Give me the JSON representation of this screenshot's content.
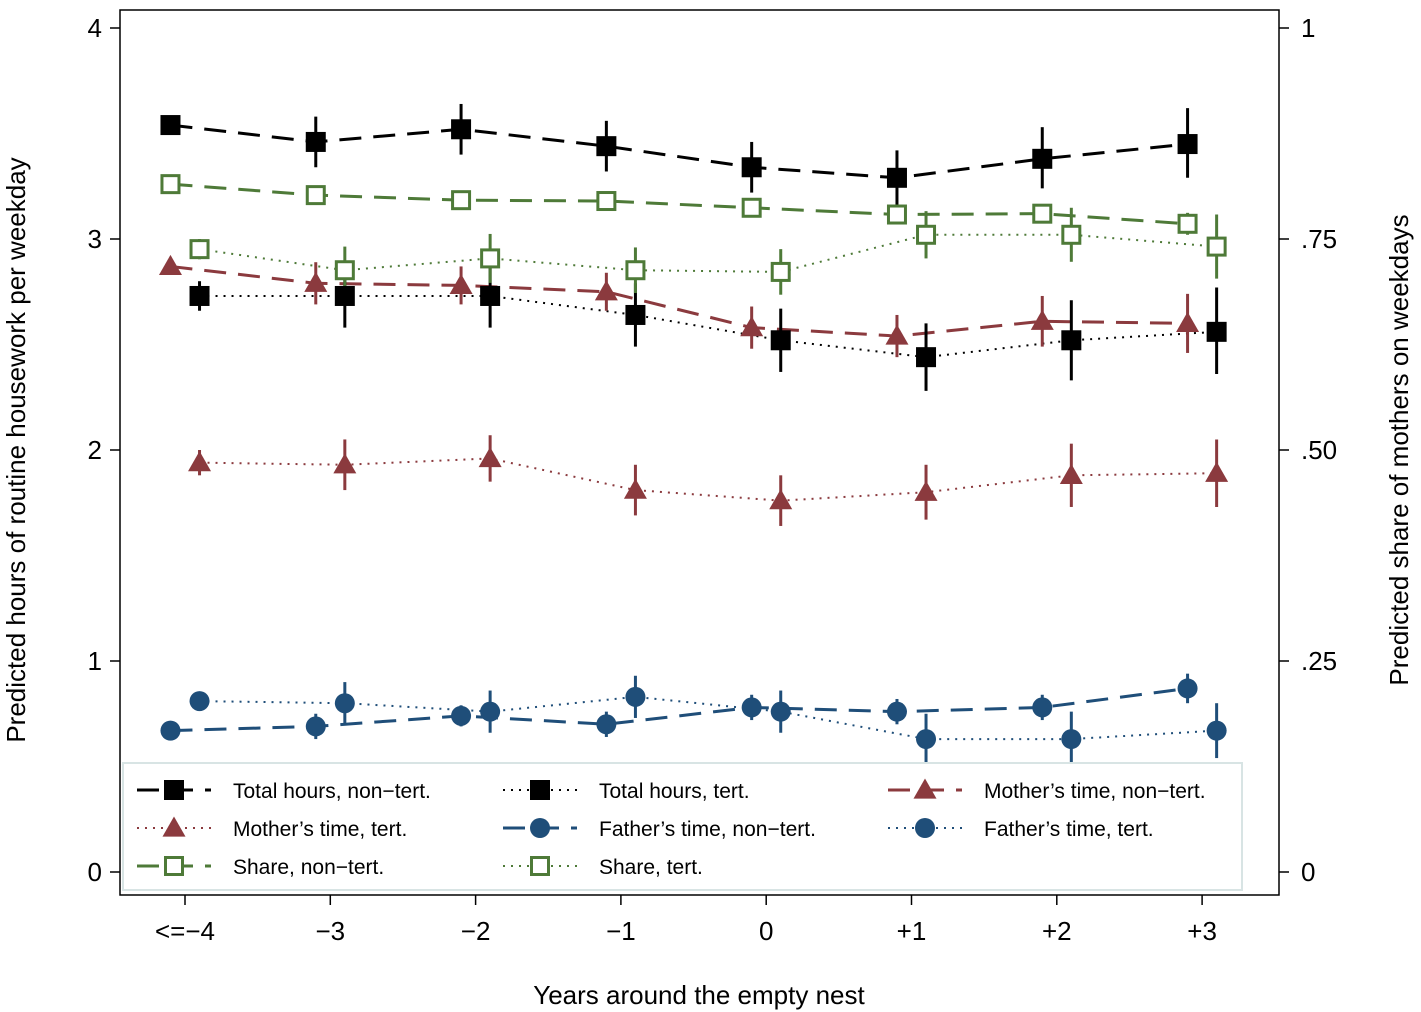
{
  "chart_data": {
    "type": "line",
    "title": "",
    "xlabel": "Years around the empty nest",
    "ylabel": "Predicted hours of routine housework per weekday",
    "y2label": "Predicted share of mothers on weekdays",
    "categories": [
      "<=−4",
      "−3",
      "−2",
      "−1",
      "0",
      "+1",
      "+2",
      "+3"
    ],
    "x_values": [
      -4,
      -3,
      -2,
      -1,
      0,
      1,
      2,
      3
    ],
    "ylim": [
      0,
      4
    ],
    "yticks": [
      "0",
      "1",
      "2",
      "3",
      "4"
    ],
    "y2lim": [
      0,
      1
    ],
    "y2ticks": [
      "0",
      ".25",
      ".50",
      ".75",
      "1"
    ],
    "grid": false,
    "legend_position": "bottom-inside",
    "series": [
      {
        "name": "Total hours, non−tert.",
        "axis": "left",
        "color": "#000000",
        "line": "dash",
        "marker": "square-filled",
        "offset": -0.1,
        "values": [
          3.54,
          3.46,
          3.52,
          3.44,
          3.34,
          3.29,
          3.38,
          3.45
        ],
        "ci_low": [
          3.51,
          3.34,
          3.4,
          3.32,
          3.22,
          3.16,
          3.24,
          3.29
        ],
        "ci_high": [
          3.57,
          3.58,
          3.64,
          3.56,
          3.46,
          3.42,
          3.53,
          3.62
        ]
      },
      {
        "name": "Total hours, tert.",
        "axis": "left",
        "color": "#000000",
        "line": "dot",
        "marker": "square-filled",
        "offset": 0.1,
        "values": [
          2.73,
          2.73,
          2.73,
          2.64,
          2.52,
          2.44,
          2.52,
          2.56
        ],
        "ci_low": [
          2.66,
          2.58,
          2.58,
          2.49,
          2.37,
          2.28,
          2.33,
          2.36
        ],
        "ci_high": [
          2.8,
          2.88,
          2.88,
          2.79,
          2.67,
          2.6,
          2.71,
          2.77
        ]
      },
      {
        "name": "Mother’s time, non−tert.",
        "axis": "left",
        "color": "#8B3A3E",
        "line": "dash",
        "marker": "triangle-filled",
        "offset": -0.1,
        "values": [
          2.87,
          2.79,
          2.78,
          2.75,
          2.58,
          2.54,
          2.61,
          2.6
        ],
        "ci_low": [
          2.84,
          2.69,
          2.69,
          2.66,
          2.48,
          2.44,
          2.49,
          2.46
        ],
        "ci_high": [
          2.9,
          2.89,
          2.87,
          2.84,
          2.68,
          2.64,
          2.73,
          2.74
        ]
      },
      {
        "name": "Mother’s time, tert.",
        "axis": "left",
        "color": "#8B3A3E",
        "line": "dot",
        "marker": "triangle-filled",
        "offset": 0.1,
        "values": [
          1.94,
          1.93,
          1.96,
          1.81,
          1.76,
          1.8,
          1.88,
          1.89
        ],
        "ci_low": [
          1.88,
          1.81,
          1.85,
          1.69,
          1.64,
          1.67,
          1.73,
          1.73
        ],
        "ci_high": [
          2.0,
          2.05,
          2.07,
          1.93,
          1.88,
          1.93,
          2.03,
          2.05
        ]
      },
      {
        "name": "Father’s time, non−tert.",
        "axis": "left",
        "color": "#1F4E79",
        "line": "dash",
        "marker": "circle-filled",
        "offset": -0.1,
        "values": [
          0.67,
          0.69,
          0.74,
          0.7,
          0.78,
          0.76,
          0.78,
          0.87
        ],
        "ci_low": [
          0.65,
          0.63,
          0.69,
          0.64,
          0.72,
          0.7,
          0.72,
          0.8
        ],
        "ci_high": [
          0.69,
          0.75,
          0.79,
          0.76,
          0.84,
          0.82,
          0.84,
          0.94
        ]
      },
      {
        "name": "Father’s time, tert.",
        "axis": "left",
        "color": "#1F4E79",
        "line": "dot",
        "marker": "circle-filled",
        "offset": 0.1,
        "values": [
          0.81,
          0.8,
          0.76,
          0.83,
          0.76,
          0.63,
          0.63,
          0.67
        ],
        "ci_low": [
          0.77,
          0.7,
          0.66,
          0.73,
          0.66,
          0.51,
          0.5,
          0.54
        ],
        "ci_high": [
          0.85,
          0.9,
          0.86,
          0.93,
          0.86,
          0.75,
          0.76,
          0.8
        ]
      },
      {
        "name": "Share, non−tert.",
        "axis": "right",
        "color": "#4E7A38",
        "line": "dash",
        "marker": "square-open",
        "offset": -0.1,
        "values": [
          0.815,
          0.802,
          0.796,
          0.795,
          0.787,
          0.779,
          0.78,
          0.768
        ],
        "ci_low": [
          0.81,
          0.795,
          0.789,
          0.788,
          0.78,
          0.772,
          0.772,
          0.755
        ],
        "ci_high": [
          0.82,
          0.809,
          0.803,
          0.802,
          0.794,
          0.786,
          0.788,
          0.781
        ]
      },
      {
        "name": "Share, tert.",
        "axis": "right",
        "color": "#4E7A38",
        "line": "dot",
        "marker": "square-open",
        "offset": 0.1,
        "values": [
          0.738,
          0.713,
          0.727,
          0.713,
          0.711,
          0.755,
          0.755,
          0.741
        ],
        "ci_low": [
          0.726,
          0.685,
          0.698,
          0.686,
          0.684,
          0.727,
          0.723,
          0.703
        ],
        "ci_high": [
          0.75,
          0.741,
          0.756,
          0.74,
          0.738,
          0.783,
          0.787,
          0.779
        ]
      }
    ]
  }
}
